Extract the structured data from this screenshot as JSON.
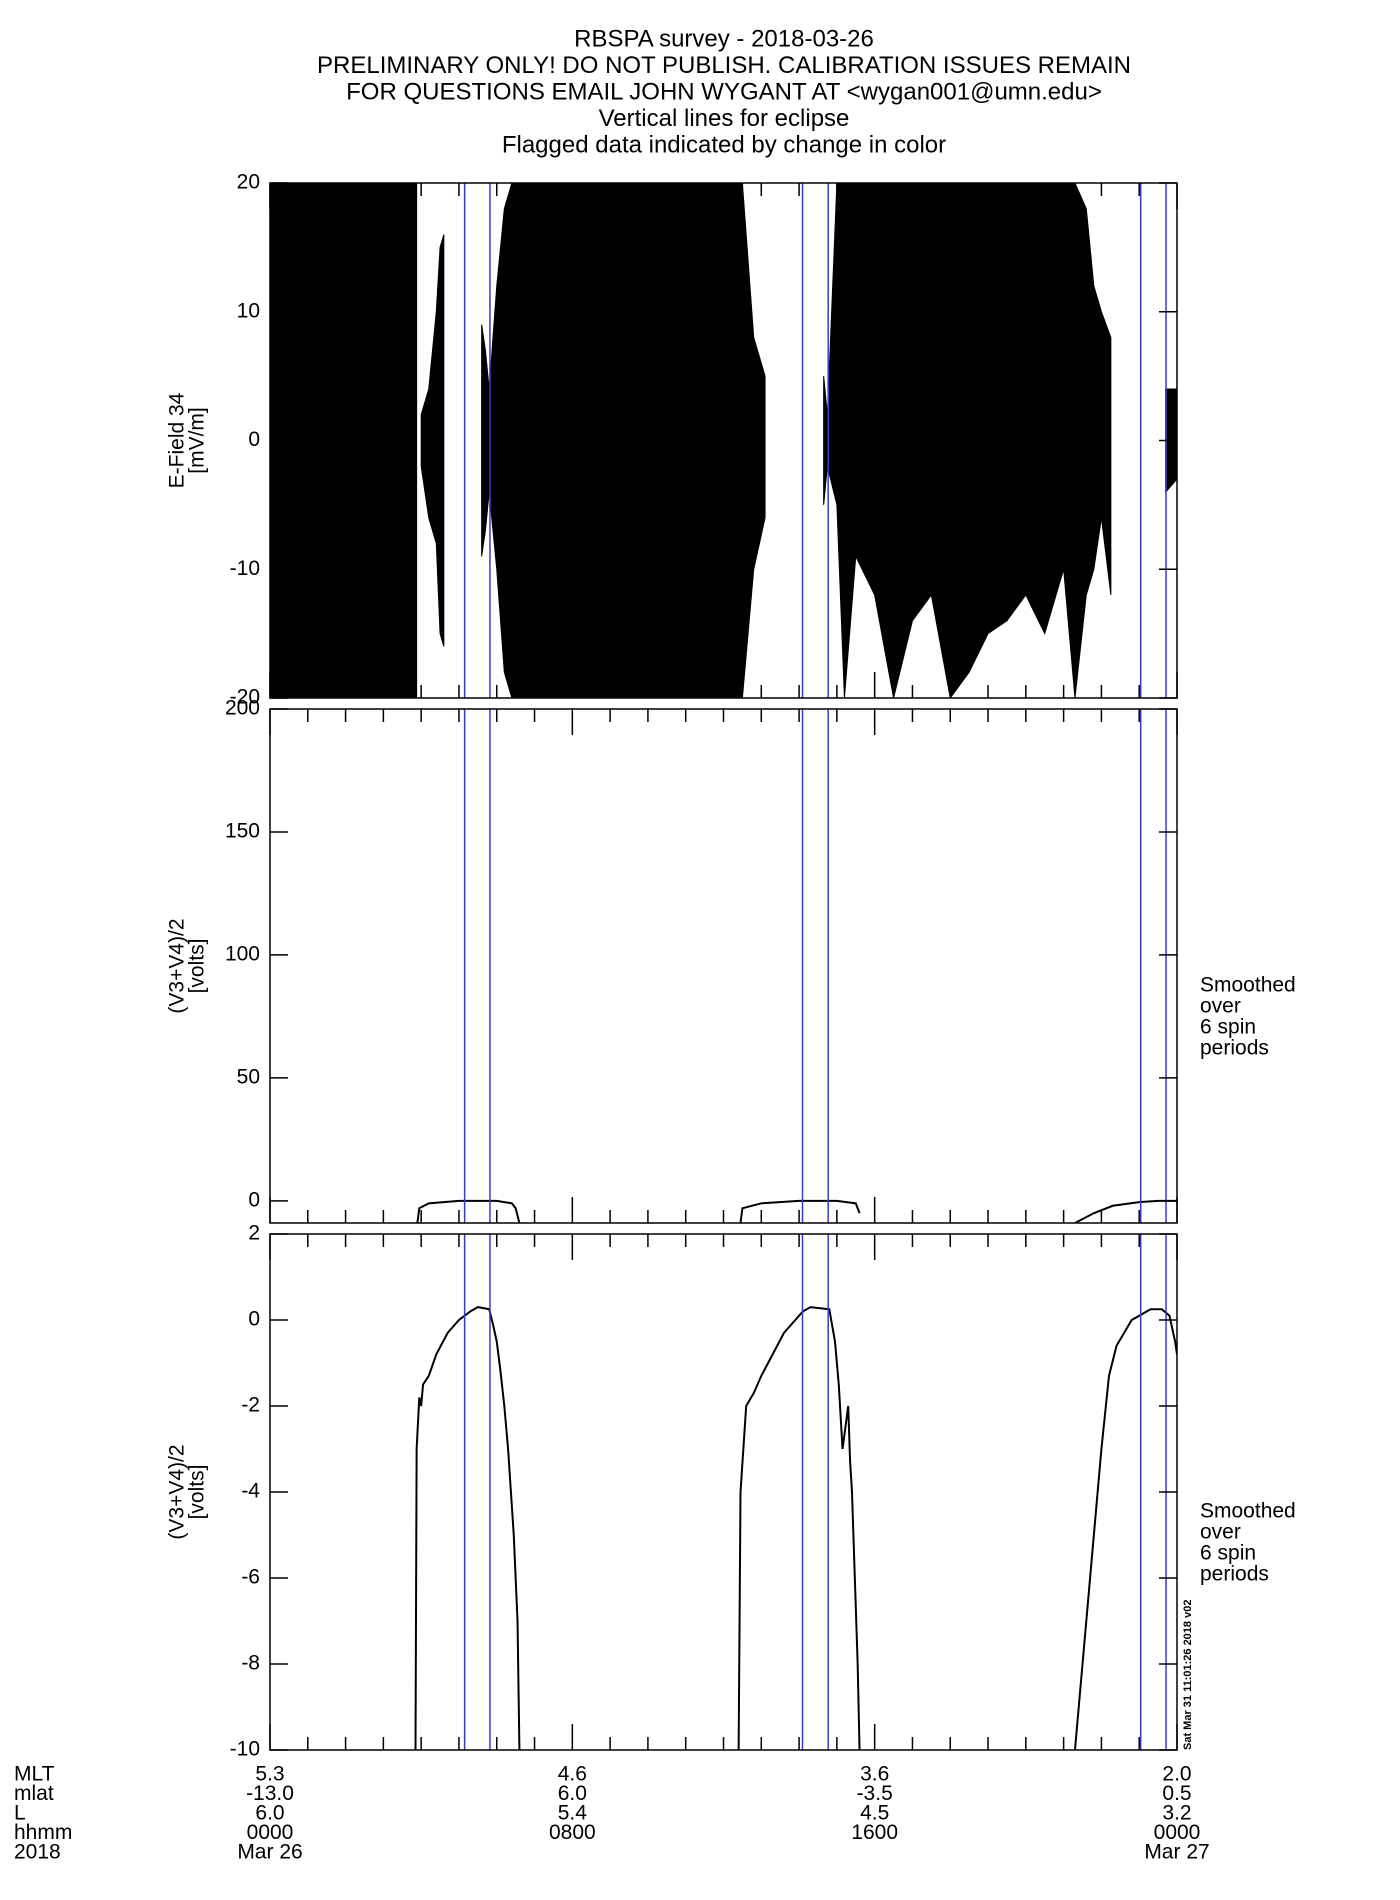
{
  "header": {
    "lines": [
      "RBSPA survey - 2018-03-26",
      "PRELIMINARY ONLY! DO NOT PUBLISH. CALIBRATION ISSUES REMAIN",
      "FOR QUESTIONS EMAIL JOHN WYGANT AT <wygan001@umn.edu>",
      "Vertical lines for eclipse",
      "Flagged data indicated by change in color"
    ]
  },
  "eclipse_lines": {
    "x": [
      5.15,
      5.82,
      14.09,
      14.77,
      23.04,
      23.71
    ],
    "color": "#3a3ac8"
  },
  "chart_data": [
    {
      "type": "band",
      "ylabel": [
        "E-Field 34",
        "[mV/m]"
      ],
      "xlim": [
        0,
        24
      ],
      "ylim": [
        -20,
        20
      ],
      "yticks": [
        -20,
        -10,
        0,
        10,
        20
      ],
      "xticks": [
        0,
        1,
        2,
        3,
        4,
        5,
        6,
        7,
        8,
        9,
        10,
        11,
        12,
        13,
        14,
        15,
        16,
        17,
        18,
        19,
        20,
        21,
        22,
        23,
        24
      ],
      "color": "#000000",
      "x": [
        0,
        3.88,
        3.95,
        4.0,
        4.2,
        4.4,
        4.5,
        4.6,
        4.8,
        5.6,
        5.7,
        5.8,
        6.0,
        6.2,
        6.4,
        12.5,
        12.8,
        13.1,
        13.3,
        14.65,
        14.75,
        15.0,
        15.2,
        15.5,
        16.0,
        16.5,
        17.0,
        17.5,
        18.0,
        18.5,
        19.0,
        19.5,
        20.0,
        20.5,
        21.0,
        21.3,
        21.6,
        21.8,
        22.0,
        22.25,
        22.5,
        23.7,
        24
      ],
      "upper": [
        20,
        20,
        null,
        2,
        4,
        10,
        15,
        16,
        null,
        9,
        7,
        4,
        12,
        18,
        20,
        20,
        8,
        5,
        null,
        5,
        2,
        20,
        20,
        20,
        20,
        20,
        20,
        20,
        20,
        20,
        20,
        20,
        20,
        20,
        20,
        20,
        18,
        12,
        10,
        8,
        null,
        4,
        4
      ],
      "lower": [
        -20,
        -20,
        null,
        -2,
        -6,
        -8,
        -15,
        -16,
        null,
        -9,
        -7,
        -4,
        -10,
        -18,
        -20,
        -20,
        -10,
        -6,
        null,
        -5,
        -2,
        -5,
        -20,
        -9,
        -12,
        -20,
        -14,
        -12,
        -20,
        -18,
        -15,
        -14,
        -12,
        -15,
        -10,
        -20,
        -12,
        -10,
        -6,
        -12,
        null,
        -4,
        -3
      ]
    },
    {
      "type": "line",
      "ylabel": [
        "(V3+V4)/2",
        "[volts]"
      ],
      "annotation": [
        "Smoothed",
        "over",
        "6 spin",
        "periods"
      ],
      "xlim": [
        0,
        24
      ],
      "ylim": [
        -9,
        200
      ],
      "yticks": [
        0,
        50,
        100,
        150,
        200
      ],
      "xticks": [
        0,
        1,
        2,
        3,
        4,
        5,
        6,
        7,
        8,
        9,
        10,
        11,
        12,
        13,
        14,
        15,
        16,
        17,
        18,
        19,
        20,
        21,
        22,
        23,
        24
      ],
      "color": "#000000",
      "x": [
        3.9,
        3.95,
        4.2,
        5.0,
        6.0,
        6.4,
        6.5,
        6.6,
        7.0,
        12.45,
        12.5,
        13.0,
        14.0,
        15.0,
        15.5,
        15.6,
        16.0,
        21.3,
        21.8,
        22.3,
        23.0,
        23.5,
        24
      ],
      "values": [
        -9,
        -3,
        -1,
        0,
        0,
        -1,
        -3,
        -9,
        null,
        -9,
        -3,
        -1,
        0,
        0,
        -1,
        -5,
        null,
        -9,
        -5,
        -2,
        -0.5,
        0,
        0
      ]
    },
    {
      "type": "line",
      "ylabel": [
        "(V3+V4)/2",
        "[volts]"
      ],
      "annotation": [
        "Smoothed",
        "over",
        "6 spin",
        "periods"
      ],
      "xlim": [
        0,
        24
      ],
      "ylim": [
        -10,
        2
      ],
      "yticks": [
        -10,
        -8,
        -6,
        -4,
        -2,
        0,
        2
      ],
      "xticks": [
        0,
        1,
        2,
        3,
        4,
        5,
        6,
        7,
        8,
        9,
        10,
        11,
        12,
        13,
        14,
        15,
        16,
        17,
        18,
        19,
        20,
        21,
        22,
        23,
        24
      ],
      "color": "#000000",
      "x": [
        3.85,
        3.88,
        3.95,
        4.0,
        4.05,
        4.2,
        4.4,
        4.7,
        5.0,
        5.3,
        5.5,
        5.8,
        5.9,
        6.0,
        6.1,
        6.2,
        6.3,
        6.45,
        6.55,
        6.6,
        7.0,
        12.4,
        12.45,
        12.6,
        12.8,
        13.0,
        13.3,
        13.6,
        13.9,
        14.1,
        14.3,
        14.8,
        14.95,
        15.05,
        15.15,
        15.3,
        15.35,
        15.4,
        15.55,
        15.6,
        16.0,
        21.3,
        21.6,
        21.8,
        22.0,
        22.2,
        22.4,
        22.6,
        22.8,
        23.0,
        23.3,
        23.6,
        23.8,
        23.95,
        24
      ],
      "values": [
        -10,
        -3,
        -1.8,
        -2,
        -1.5,
        -1.3,
        -0.8,
        -0.3,
        0,
        0.2,
        0.3,
        0.25,
        -0.1,
        -0.5,
        -1.2,
        -2,
        -3,
        -5,
        -7,
        -10,
        null,
        -10,
        -4,
        -2,
        -1.7,
        -1.3,
        -0.8,
        -0.3,
        0,
        0.2,
        0.3,
        0.25,
        -0.5,
        -1.5,
        -3,
        -2,
        -3.3,
        -4,
        -8,
        -10,
        null,
        -10,
        -7,
        -5,
        -3,
        -1.3,
        -0.6,
        -0.3,
        0,
        0.1,
        0.25,
        0.25,
        0.1,
        -0.5,
        -0.8
      ]
    }
  ],
  "ephemeris": {
    "x": [
      0,
      8,
      16,
      24
    ],
    "rows": [
      {
        "label": "MLT",
        "values": [
          "5.3",
          "4.6",
          "3.6",
          "2.0"
        ]
      },
      {
        "label": "mlat",
        "values": [
          "-13.0",
          "6.0",
          "-3.5",
          "0.5"
        ]
      },
      {
        "label": "L",
        "values": [
          "6.0",
          "5.4",
          "4.5",
          "3.2"
        ]
      },
      {
        "label": "hhmm",
        "values": [
          "0000",
          "0800",
          "1600",
          "0000"
        ]
      },
      {
        "label": "2018",
        "values": [
          "Mar 26",
          null,
          null,
          "Mar 27"
        ]
      }
    ]
  },
  "stamp": "Sat Mar 31 11:01:26 2018 v02"
}
